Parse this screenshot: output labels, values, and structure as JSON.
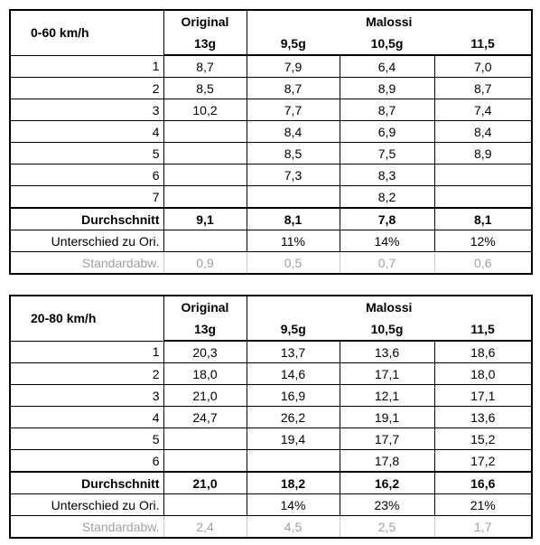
{
  "tables": [
    {
      "title": "0-60 km/h",
      "header": {
        "group1": "Original",
        "group2": "Malossi",
        "columns": [
          "13g",
          "9,5g",
          "10,5g",
          "11,5"
        ]
      },
      "rows": [
        {
          "label": "1",
          "values": [
            "8,7",
            "7,9",
            "6,4",
            "7,0"
          ]
        },
        {
          "label": "2",
          "values": [
            "8,5",
            "8,7",
            "8,9",
            "8,7"
          ]
        },
        {
          "label": "3",
          "values": [
            "10,2",
            "7,7",
            "8,7",
            "7,4"
          ]
        },
        {
          "label": "4",
          "values": [
            null,
            "8,4",
            "6,9",
            "8,4"
          ]
        },
        {
          "label": "5",
          "values": [
            null,
            "8,5",
            "7,5",
            "8,9"
          ]
        },
        {
          "label": "6",
          "values": [
            null,
            "7,3",
            "8,3",
            null
          ]
        },
        {
          "label": "7",
          "values": [
            null,
            null,
            "8,2",
            null
          ]
        }
      ],
      "summary": [
        {
          "label": "Durchschnitt",
          "values": [
            "9,1",
            "8,1",
            "7,8",
            "8,1"
          ]
        },
        {
          "label": "Unterschied zu Ori.",
          "values": [
            null,
            "11%",
            "14%",
            "12%"
          ]
        },
        {
          "label": "Standardabw.",
          "values": [
            "0,9",
            "0,5",
            "0,7",
            "0,6"
          ]
        }
      ]
    },
    {
      "title": "20-80 km/h",
      "header": {
        "group1": "Original",
        "group2": "Malossi",
        "columns": [
          "13g",
          "9,5g",
          "10,5g",
          "11,5"
        ]
      },
      "rows": [
        {
          "label": "1",
          "values": [
            "20,3",
            "13,7",
            "13,6",
            "18,6"
          ]
        },
        {
          "label": "2",
          "values": [
            "18,0",
            "14,6",
            "17,1",
            "18,0"
          ]
        },
        {
          "label": "3",
          "values": [
            "21,0",
            "16,9",
            "12,1",
            "17,1"
          ]
        },
        {
          "label": "4",
          "values": [
            "24,7",
            "26,2",
            "19,1",
            "13,6"
          ]
        },
        {
          "label": "5",
          "values": [
            null,
            "19,4",
            "17,7",
            "15,2"
          ]
        },
        {
          "label": "6",
          "values": [
            null,
            null,
            "17,8",
            "17,2"
          ]
        }
      ],
      "summary": [
        {
          "label": "Durchschnitt",
          "values": [
            "21,0",
            "18,2",
            "16,2",
            "16,6"
          ]
        },
        {
          "label": "Unterschied zu Ori.",
          "values": [
            null,
            "14%",
            "23%",
            "21%"
          ]
        },
        {
          "label": "Standardabw.",
          "values": [
            "2,4",
            "4,5",
            "2,5",
            "1,7"
          ]
        }
      ]
    }
  ]
}
